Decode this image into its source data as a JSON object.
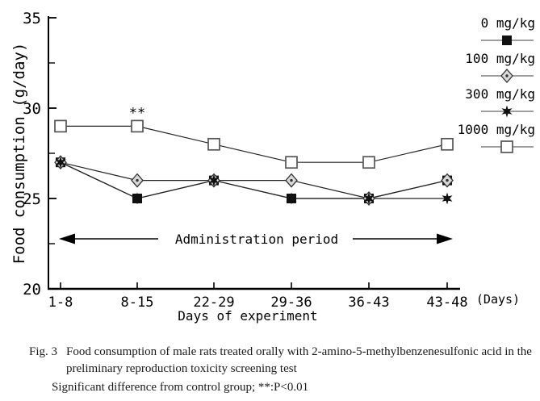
{
  "figure": {
    "caption_label": "Fig. 3",
    "caption_text": "Food consumption of male rats treated orally with 2-amino-5-methylbenzenesulfonic acid in the preliminary reproduction toxicity screening test",
    "note": "Significant difference from control group; **:P<0.01"
  },
  "chart_data": {
    "type": "line",
    "title": "",
    "categories": [
      "1-8",
      "8-15",
      "22-29",
      "29-36",
      "36-43",
      "43-48"
    ],
    "series": [
      {
        "name": "0 mg/kg",
        "marker": "filled-square",
        "values": [
          27,
          25,
          26,
          25,
          25,
          26
        ]
      },
      {
        "name": "100 mg/kg",
        "marker": "gray-diamond",
        "values": [
          27,
          26,
          26,
          26,
          25,
          26
        ]
      },
      {
        "name": "300 mg/kg",
        "marker": "filled-star",
        "values": [
          27,
          25,
          26,
          25,
          25,
          25
        ]
      },
      {
        "name": "1000 mg/kg",
        "marker": "open-square",
        "values": [
          29,
          29,
          28,
          27,
          27,
          28
        ]
      }
    ],
    "ylabel": "Food consumption (g/day)",
    "xlabel": "Days of experiment",
    "x_axis_unit": "(Days)",
    "ylim": [
      20,
      35
    ],
    "yticks_major": [
      20,
      25,
      30,
      35
    ],
    "yticks_minor": [
      22.5,
      27.5,
      32.5
    ],
    "grid": false,
    "legend_position": "top-right",
    "annotations": {
      "significance": {
        "text": "**",
        "category": "8-15",
        "series": "1000 mg/kg",
        "value": 29
      },
      "administration_period": {
        "text": "Administration period"
      }
    },
    "colors": {
      "line": "#222222",
      "marker_fill": "#111111",
      "diamond_fill": "#d9d9d9",
      "open_fill": "#ffffff",
      "legend_line": "#666666",
      "text": "#000000",
      "background": "#ffffff"
    }
  }
}
